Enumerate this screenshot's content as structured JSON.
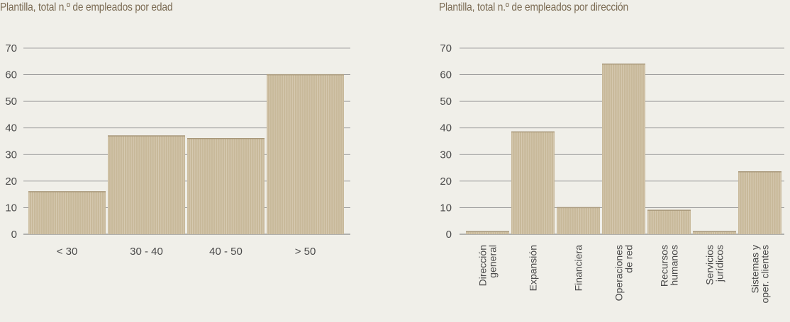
{
  "chart_data": [
    {
      "type": "bar",
      "title": "Plantilla, total n.º de empleados por edad",
      "categories": [
        "< 30",
        "30 - 40",
        "40 - 50",
        "> 50"
      ],
      "values": [
        16,
        37,
        36,
        60
      ],
      "ylim": [
        0,
        70
      ],
      "yticks": [
        0,
        10,
        20,
        30,
        40,
        50,
        60,
        70
      ],
      "grid": true,
      "bar_color": "#c8b99a"
    },
    {
      "type": "bar",
      "title": "Plantilla, total n.º de empleados por dirección",
      "categories": [
        [
          "Dirección",
          "general"
        ],
        [
          "Expansión"
        ],
        [
          "Financiera"
        ],
        [
          "Operaciones",
          "de red"
        ],
        [
          "Recursos",
          "humanos"
        ],
        [
          "Servicios",
          "jurídicos"
        ],
        [
          "Sistemas y",
          "oper. clientes"
        ]
      ],
      "values": [
        1,
        38.5,
        10,
        64,
        9,
        1,
        23.5
      ],
      "ylim": [
        0,
        70
      ],
      "yticks": [
        0,
        10,
        20,
        30,
        40,
        50,
        60,
        70
      ],
      "grid": true,
      "bar_color": "#c8b99a"
    }
  ]
}
